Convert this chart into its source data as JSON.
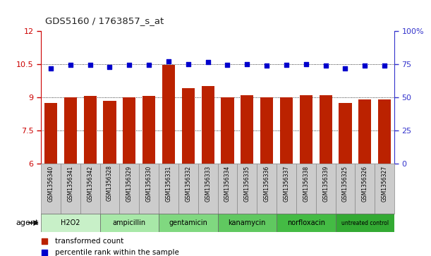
{
  "title": "GDS5160 / 1763857_s_at",
  "samples": [
    "GSM1356340",
    "GSM1356341",
    "GSM1356342",
    "GSM1356328",
    "GSM1356329",
    "GSM1356330",
    "GSM1356331",
    "GSM1356332",
    "GSM1356333",
    "GSM1356334",
    "GSM1356335",
    "GSM1356336",
    "GSM1356337",
    "GSM1356338",
    "GSM1356339",
    "GSM1356325",
    "GSM1356326",
    "GSM1356327"
  ],
  "bar_values": [
    8.75,
    9.0,
    9.05,
    8.85,
    9.0,
    9.05,
    10.45,
    9.4,
    9.5,
    9.0,
    9.1,
    9.0,
    9.0,
    9.1,
    9.1,
    8.75,
    8.9,
    8.9
  ],
  "dot_values": [
    10.3,
    10.45,
    10.45,
    10.38,
    10.45,
    10.45,
    10.62,
    10.5,
    10.58,
    10.45,
    10.48,
    10.42,
    10.45,
    10.5,
    10.42,
    10.3,
    10.42,
    10.42
  ],
  "ylim_left": [
    6,
    12
  ],
  "ylim_right": [
    0,
    100
  ],
  "yticks_left": [
    6,
    7.5,
    9,
    10.5,
    12
  ],
  "yticks_right": [
    0,
    25,
    50,
    75,
    100
  ],
  "ytick_labels_left": [
    "6",
    "7.5",
    "9",
    "10.5",
    "12"
  ],
  "ytick_labels_right": [
    "0",
    "25",
    "50",
    "75",
    "100%"
  ],
  "bar_color": "#bb2200",
  "dot_color": "#0000cc",
  "bar_bottom": 6,
  "groups": [
    {
      "label": "H2O2",
      "start": 0,
      "end": 3,
      "color": "#c8f0c8"
    },
    {
      "label": "ampicillin",
      "start": 3,
      "end": 6,
      "color": "#a8e8a8"
    },
    {
      "label": "gentamicin",
      "start": 6,
      "end": 9,
      "color": "#80d880"
    },
    {
      "label": "kanamycin",
      "start": 9,
      "end": 12,
      "color": "#60c860"
    },
    {
      "label": "norfloxacin",
      "start": 12,
      "end": 15,
      "color": "#44bb44"
    },
    {
      "label": "untreated control",
      "start": 15,
      "end": 18,
      "color": "#33aa33"
    }
  ],
  "agent_label": "agent",
  "legend_bar_label": "transformed count",
  "legend_dot_label": "percentile rank within the sample",
  "left_axis_color": "#cc0000",
  "right_axis_color": "#3333cc",
  "sample_box_color": "#cccccc",
  "sample_box_edge": "#888888"
}
